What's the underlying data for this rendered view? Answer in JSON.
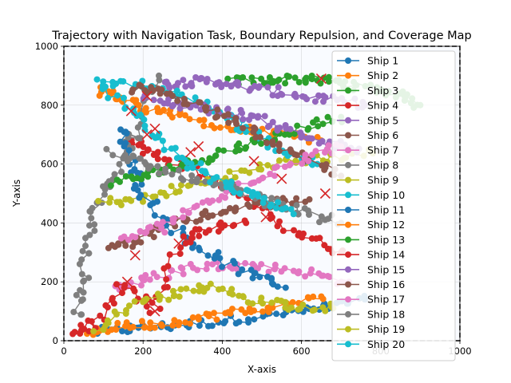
{
  "chart_data": {
    "type": "line",
    "title": "Trajectory with Navigation Task, Boundary Repulsion, and Coverage Map",
    "xlabel": "X-axis",
    "ylabel": "Y-axis",
    "xlim": [
      0,
      1000
    ],
    "ylim": [
      0,
      1000
    ],
    "xticks": [
      "0",
      "200",
      "400",
      "600",
      "800",
      "1000"
    ],
    "yticks": [
      "0",
      "200",
      "400",
      "600",
      "800",
      "1000"
    ],
    "grid": true,
    "legend_position": "upper-right",
    "boundary": {
      "x": [
        0,
        1000
      ],
      "y": [
        0,
        1000
      ],
      "style": "dashed"
    },
    "colors": [
      "#1f77b4",
      "#ff7f0e",
      "#2ca02c",
      "#d62728",
      "#9467bd",
      "#8c564b",
      "#e377c2",
      "#7f7f7f",
      "#bcbd22",
      "#17becf"
    ],
    "series": [
      {
        "name": "Ship 1",
        "points": [
          [
            80,
            30
          ],
          [
            200,
            45
          ],
          [
            320,
            55
          ],
          [
            450,
            75
          ],
          [
            560,
            95
          ],
          [
            660,
            110
          ],
          [
            760,
            140
          ]
        ]
      },
      {
        "name": "Ship 2",
        "points": [
          [
            90,
            850
          ],
          [
            150,
            820
          ],
          [
            210,
            790
          ],
          [
            300,
            760
          ],
          [
            420,
            720
          ],
          [
            540,
            700
          ],
          [
            650,
            680
          ]
        ]
      },
      {
        "name": "Ship 3",
        "points": [
          [
            420,
            880
          ],
          [
            520,
            885
          ],
          [
            600,
            890
          ],
          [
            680,
            880
          ],
          [
            760,
            860
          ],
          [
            840,
            840
          ],
          [
            900,
            800
          ]
        ]
      },
      {
        "name": "Ship 4",
        "points": [
          [
            160,
            700
          ],
          [
            220,
            640
          ],
          [
            300,
            600
          ],
          [
            420,
            520
          ],
          [
            510,
            430
          ],
          [
            600,
            360
          ],
          [
            700,
            300
          ]
        ]
      },
      {
        "name": "Ship 5",
        "points": [
          [
            250,
            870
          ],
          [
            320,
            880
          ],
          [
            380,
            880
          ],
          [
            460,
            860
          ],
          [
            560,
            840
          ],
          [
            660,
            820
          ],
          [
            760,
            800
          ]
        ]
      },
      {
        "name": "Ship 6",
        "points": [
          [
            110,
            320
          ],
          [
            180,
            330
          ],
          [
            260,
            400
          ],
          [
            340,
            420
          ],
          [
            420,
            450
          ],
          [
            520,
            470
          ],
          [
            620,
            480
          ]
        ]
      },
      {
        "name": "Ship 7",
        "points": [
          [
            130,
            180
          ],
          [
            220,
            210
          ],
          [
            320,
            250
          ],
          [
            420,
            260
          ],
          [
            520,
            250
          ],
          [
            620,
            230
          ],
          [
            720,
            200
          ]
        ]
      },
      {
        "name": "Ship 8",
        "points": [
          [
            30,
            80
          ],
          [
            50,
            220
          ],
          [
            70,
            380
          ],
          [
            90,
            500
          ],
          [
            150,
            620
          ],
          [
            180,
            700
          ],
          [
            240,
            900
          ]
        ]
      },
      {
        "name": "Ship 9",
        "points": [
          [
            100,
            470
          ],
          [
            200,
            480
          ],
          [
            300,
            520
          ],
          [
            420,
            560
          ],
          [
            540,
            600
          ],
          [
            660,
            620
          ],
          [
            780,
            640
          ]
        ]
      },
      {
        "name": "Ship 10",
        "points": [
          [
            90,
            880
          ],
          [
            200,
            870
          ],
          [
            320,
            820
          ],
          [
            420,
            760
          ],
          [
            480,
            700
          ],
          [
            560,
            640
          ],
          [
            640,
            600
          ]
        ]
      },
      {
        "name": "Ship 11",
        "points": [
          [
            140,
            730
          ],
          [
            170,
            600
          ],
          [
            200,
            500
          ],
          [
            280,
            380
          ],
          [
            360,
            300
          ],
          [
            460,
            230
          ],
          [
            560,
            180
          ]
        ]
      },
      {
        "name": "Ship 12",
        "points": [
          [
            60,
            30
          ],
          [
            150,
            50
          ],
          [
            250,
            60
          ],
          [
            350,
            80
          ],
          [
            450,
            100
          ],
          [
            550,
            120
          ],
          [
            650,
            150
          ]
        ]
      },
      {
        "name": "Ship 13",
        "points": [
          [
            120,
            540
          ],
          [
            210,
            560
          ],
          [
            300,
            600
          ],
          [
            400,
            640
          ],
          [
            500,
            680
          ],
          [
            600,
            720
          ],
          [
            700,
            760
          ]
        ]
      },
      {
        "name": "Ship 14",
        "points": [
          [
            20,
            30
          ],
          [
            80,
            60
          ],
          [
            150,
            190
          ],
          [
            230,
            100
          ],
          [
            290,
            330
          ],
          [
            360,
            380
          ],
          [
            460,
            400
          ]
        ]
      },
      {
        "name": "Ship 15",
        "points": [
          [
            200,
            820
          ],
          [
            300,
            800
          ],
          [
            400,
            780
          ],
          [
            480,
            760
          ],
          [
            560,
            720
          ],
          [
            650,
            680
          ],
          [
            740,
            640
          ]
        ]
      },
      {
        "name": "Ship 16",
        "points": [
          [
            170,
            860
          ],
          [
            250,
            840
          ],
          [
            340,
            800
          ],
          [
            430,
            740
          ],
          [
            520,
            680
          ],
          [
            610,
            620
          ],
          [
            700,
            560
          ]
        ]
      },
      {
        "name": "Ship 17",
        "points": [
          [
            150,
            340
          ],
          [
            240,
            380
          ],
          [
            320,
            440
          ],
          [
            410,
            500
          ],
          [
            500,
            560
          ],
          [
            600,
            620
          ],
          [
            700,
            660
          ]
        ]
      },
      {
        "name": "Ship 18",
        "points": [
          [
            120,
            640
          ],
          [
            200,
            600
          ],
          [
            300,
            560
          ],
          [
            400,
            520
          ],
          [
            500,
            480
          ],
          [
            600,
            440
          ],
          [
            700,
            400
          ]
        ]
      },
      {
        "name": "Ship 19",
        "points": [
          [
            80,
            40
          ],
          [
            180,
            120
          ],
          [
            280,
            160
          ],
          [
            380,
            180
          ],
          [
            480,
            140
          ],
          [
            580,
            120
          ],
          [
            680,
            110
          ]
        ]
      },
      {
        "name": "Ship 20",
        "points": [
          [
            100,
            870
          ],
          [
            180,
            760
          ],
          [
            260,
            660
          ],
          [
            340,
            580
          ],
          [
            420,
            520
          ],
          [
            500,
            480
          ],
          [
            580,
            430
          ]
        ]
      }
    ],
    "markers": [
      [
        170,
        780
      ],
      [
        210,
        830
      ],
      [
        230,
        720
      ],
      [
        180,
        290
      ],
      [
        230,
        100
      ],
      [
        290,
        330
      ],
      [
        320,
        640
      ],
      [
        340,
        660
      ],
      [
        480,
        610
      ],
      [
        510,
        420
      ],
      [
        550,
        550
      ],
      [
        660,
        500
      ],
      [
        650,
        890
      ],
      [
        210,
        700
      ],
      [
        160,
        200
      ]
    ]
  }
}
